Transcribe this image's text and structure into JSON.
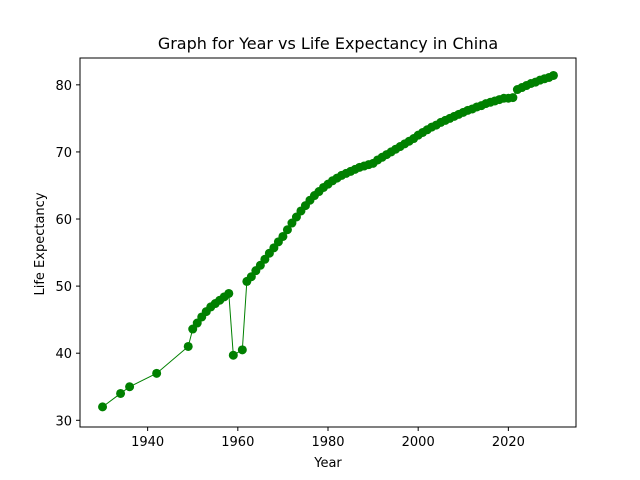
{
  "chart_data": {
    "type": "line",
    "title": "Graph for Year vs Life Expectancy in China",
    "xlabel": "Year",
    "ylabel": "Life Expectancy",
    "xlim": [
      1925,
      2035
    ],
    "ylim": [
      29,
      84
    ],
    "xticks": [
      1940,
      1960,
      1980,
      2000,
      2020
    ],
    "yticks": [
      30,
      40,
      50,
      60,
      70,
      80
    ],
    "grid": false,
    "series": [
      {
        "name": "China",
        "color": "#008000",
        "marker": "circle",
        "x": [
          1930,
          1934,
          1936,
          1942,
          1949,
          1950,
          1951,
          1952,
          1953,
          1954,
          1955,
          1956,
          1957,
          1958,
          1959,
          1961,
          1962,
          1963,
          1964,
          1965,
          1966,
          1967,
          1968,
          1969,
          1970,
          1971,
          1972,
          1973,
          1974,
          1975,
          1976,
          1977,
          1978,
          1979,
          1980,
          1981,
          1982,
          1983,
          1984,
          1985,
          1986,
          1987,
          1988,
          1989,
          1990,
          1991,
          1992,
          1993,
          1994,
          1995,
          1996,
          1997,
          1998,
          1999,
          2000,
          2001,
          2002,
          2003,
          2004,
          2005,
          2006,
          2007,
          2008,
          2009,
          2010,
          2011,
          2012,
          2013,
          2014,
          2015,
          2016,
          2017,
          2018,
          2019,
          2020,
          2021,
          2022,
          2023,
          2024,
          2025,
          2026,
          2027,
          2028,
          2029,
          2030
        ],
        "y": [
          32.0,
          34.0,
          35.0,
          37.0,
          41.0,
          43.6,
          44.5,
          45.4,
          46.2,
          46.9,
          47.4,
          47.9,
          48.4,
          48.9,
          39.7,
          40.5,
          50.7,
          51.4,
          52.3,
          53.1,
          54.0,
          54.9,
          55.7,
          56.6,
          57.4,
          58.4,
          59.4,
          60.3,
          61.2,
          62.0,
          62.8,
          63.5,
          64.1,
          64.7,
          65.2,
          65.7,
          66.1,
          66.5,
          66.8,
          67.1,
          67.4,
          67.7,
          67.9,
          68.1,
          68.3,
          68.8,
          69.2,
          69.6,
          70.0,
          70.4,
          70.8,
          71.2,
          71.6,
          72.0,
          72.5,
          72.9,
          73.3,
          73.7,
          74.0,
          74.4,
          74.7,
          75.0,
          75.3,
          75.6,
          75.9,
          76.2,
          76.4,
          76.7,
          76.9,
          77.2,
          77.4,
          77.6,
          77.8,
          78.0,
          78.0,
          78.1,
          79.3,
          79.6,
          79.9,
          80.2,
          80.4,
          80.7,
          80.9,
          81.1,
          81.4
        ]
      }
    ]
  }
}
